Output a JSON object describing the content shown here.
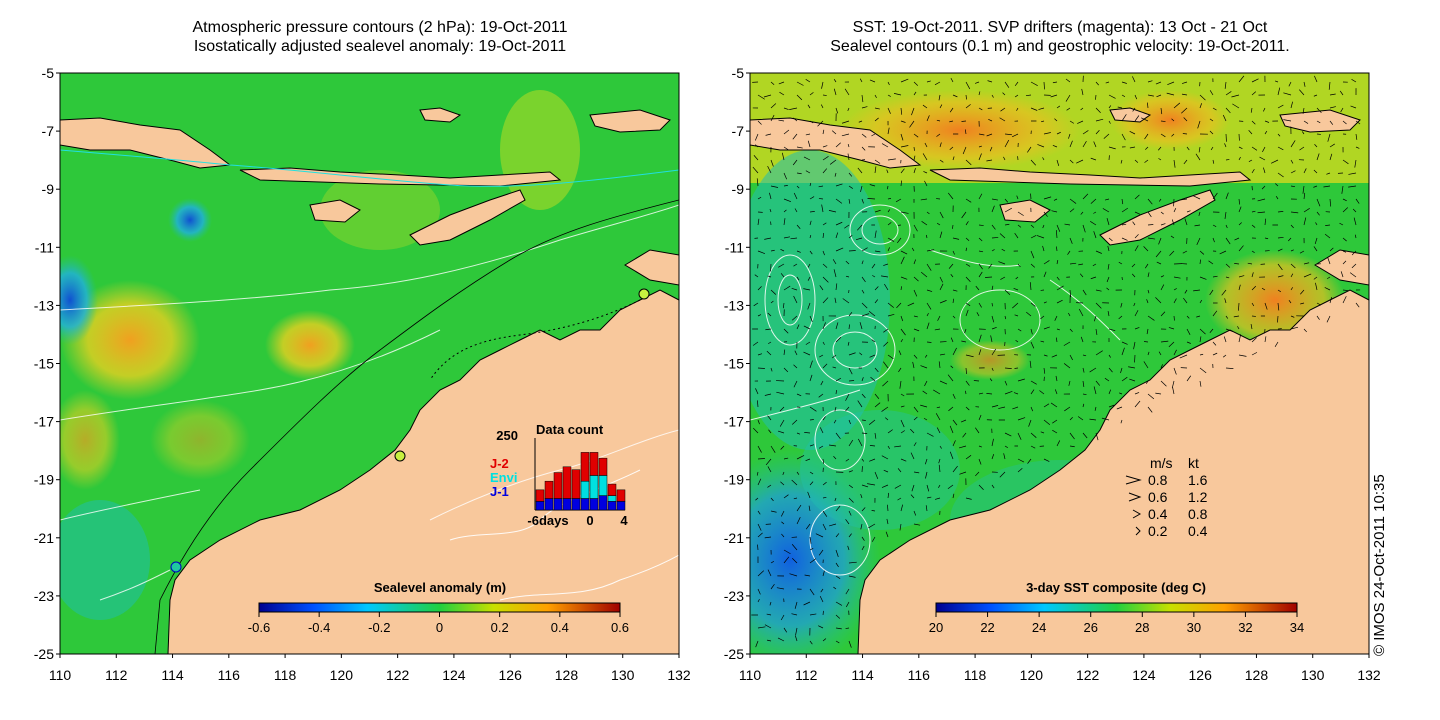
{
  "left_panel": {
    "title_line1": "Atmospheric pressure contours (2 hPa): 19-Oct-2011",
    "title_line2": "Isostatically adjusted sealevel anomaly: 19-Oct-2011",
    "colorbar": {
      "label": "Sealevel anomaly (m)",
      "tick_labels": [
        "-0.6",
        "-0.4",
        "-0.2",
        "0",
        "0.2",
        "0.4",
        "0.6"
      ]
    },
    "data_count": {
      "title": "Data count",
      "max_label": "250",
      "x_labels": [
        "-6days",
        "0",
        "4"
      ],
      "legend": [
        {
          "label": "J-2",
          "color": "#e00000"
        },
        {
          "label": "Envi",
          "color": "#00e0e0"
        },
        {
          "label": "J-1",
          "color": "#0000e0"
        }
      ],
      "bars": [
        {
          "day": -6,
          "j1": 30,
          "envi": 0,
          "j2": 40
        },
        {
          "day": -5,
          "j1": 40,
          "envi": 0,
          "j2": 60
        },
        {
          "day": -4,
          "j1": 40,
          "envi": 0,
          "j2": 90
        },
        {
          "day": -3,
          "j1": 40,
          "envi": 0,
          "j2": 110
        },
        {
          "day": -2,
          "j1": 40,
          "envi": 0,
          "j2": 100
        },
        {
          "day": -1,
          "j1": 40,
          "envi": 60,
          "j2": 100
        },
        {
          "day": 0,
          "j1": 40,
          "envi": 80,
          "j2": 80
        },
        {
          "day": 1,
          "j1": 50,
          "envi": 70,
          "j2": 60
        },
        {
          "day": 2,
          "j1": 30,
          "envi": 20,
          "j2": 40
        },
        {
          "day": 3,
          "j1": 30,
          "envi": 0,
          "j2": 40
        }
      ]
    }
  },
  "right_panel": {
    "title_line1": "SST: 19-Oct-2011. SVP drifters (magenta): 13 Oct - 21 Oct",
    "title_line2": "Sealevel contours (0.1 m) and geostrophic velocity: 19-Oct-2011.",
    "colorbar": {
      "label": "3-day SST composite (deg C)",
      "tick_labels": [
        "20",
        "22",
        "24",
        "26",
        "28",
        "30",
        "32",
        "34"
      ]
    },
    "velocity_legend": {
      "header_ms": "m/s",
      "header_kt": "kt",
      "rows": [
        {
          "ms": "0.8",
          "kt": "1.6"
        },
        {
          "ms": "0.6",
          "kt": "1.2"
        },
        {
          "ms": "0.4",
          "kt": "0.8"
        },
        {
          "ms": "0.2",
          "kt": "0.4"
        }
      ]
    }
  },
  "axes": {
    "y_labels": [
      "-5",
      "-7",
      "-9",
      "-11",
      "-13",
      "-15",
      "-17",
      "-19",
      "-21",
      "-23",
      "-25"
    ],
    "x_labels": [
      "110",
      "112",
      "114",
      "116",
      "118",
      "120",
      "122",
      "124",
      "126",
      "128",
      "130",
      "132"
    ],
    "lat_range": [
      -25,
      -5
    ],
    "lon_range": [
      110,
      132
    ]
  },
  "credit": "© IMOS 24-Oct-2011 10:35",
  "colors": {
    "land": "#f8c89c",
    "ocean_green": "#2ec83a",
    "sst_yellow": "#d8e020",
    "sst_blue": "#1a90e0"
  }
}
